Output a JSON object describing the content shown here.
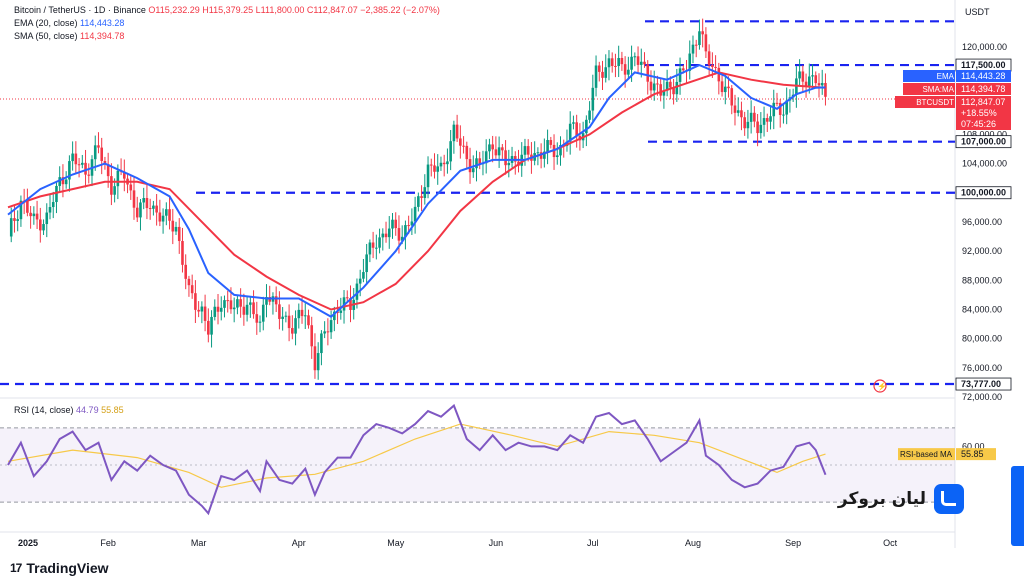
{
  "header": {
    "symbol": "Bitcoin / TetherUS · 1D · Binance",
    "ohlc": "O115,232.29 H115,379.25 L111,800.00 C112,847.07 −2,385.22 (−2.07%)",
    "ema_label": "EMA (20, close)",
    "ema_value": "114,443.28",
    "sma_label": "SMA (50, close)",
    "sma_value": "114,394.78",
    "currency": "USDT"
  },
  "rsi_header": {
    "label": "RSI (14, close)",
    "value": "44.79",
    "ma_value": "55.85"
  },
  "brand": {
    "name": "لیان بروکر"
  },
  "footer": {
    "logo_text": "TradingView",
    "logo_mark": "17"
  },
  "colors": {
    "up": "#089981",
    "down": "#f23645",
    "ema": "#2962ff",
    "sma": "#f23645",
    "rsi": "#7e57c2",
    "rsi_ma": "#f7c948",
    "level": "#1a23f0"
  },
  "chart_data": [
    {
      "type": "line",
      "title": "Bitcoin / TetherUS · 1D · Binance",
      "ylim": [
        72000,
        124500
      ],
      "y_ticks": [
        "72,000.00",
        "76,000.00",
        "80,000.00",
        "84,000.00",
        "88,000.00",
        "92,000.00",
        "96,000.00",
        "100,000.00",
        "104,000.00",
        "108,000.00",
        "120,000.00"
      ],
      "x_ticks": [
        "2025",
        "Feb",
        "Mar",
        "Apr",
        "May",
        "Jun",
        "Jul",
        "Aug",
        "Sep",
        "Oct"
      ],
      "levels": [
        {
          "label": "117,500.00",
          "value": 117500
        },
        {
          "label": "107,000.00",
          "value": 107000
        },
        {
          "label": "100,000.00",
          "value": 100000
        },
        {
          "label": "73,777.00",
          "value": 73777
        }
      ],
      "price_tags": [
        {
          "name": "EMA",
          "label": "114,443.28",
          "value": 114443.28
        },
        {
          "name": "SMA:MA",
          "label": "114,394.78",
          "value": 114394.78
        },
        {
          "name": "BTCUSDT",
          "label": "112,847.07",
          "sub1": "+18.55%",
          "sub2": "07:45:26",
          "value": 112847.07
        }
      ],
      "price_path": [
        [
          0,
          94000
        ],
        [
          4,
          99000
        ],
        [
          8,
          96000
        ],
        [
          12,
          96500
        ],
        [
          16,
          101500
        ],
        [
          20,
          104500
        ],
        [
          24,
          103000
        ],
        [
          28,
          106000
        ],
        [
          32,
          101000
        ],
        [
          36,
          102500
        ],
        [
          40,
          97500
        ],
        [
          44,
          98500
        ],
        [
          48,
          96500
        ],
        [
          52,
          95500
        ],
        [
          56,
          86000
        ],
        [
          60,
          84000
        ],
        [
          62,
          81000
        ],
        [
          66,
          85500
        ],
        [
          70,
          84000
        ],
        [
          74,
          85000
        ],
        [
          78,
          81500
        ],
        [
          80,
          87000
        ],
        [
          84,
          83000
        ],
        [
          88,
          82000
        ],
        [
          92,
          83500
        ],
        [
          95,
          77000
        ],
        [
          98,
          80500
        ],
        [
          102,
          84500
        ],
        [
          106,
          84500
        ],
        [
          110,
          90000
        ],
        [
          114,
          93500
        ],
        [
          118,
          95000
        ],
        [
          122,
          94500
        ],
        [
          126,
          97000
        ],
        [
          130,
          103500
        ],
        [
          134,
          103000
        ],
        [
          138,
          108500
        ],
        [
          142,
          104500
        ],
        [
          146,
          103500
        ],
        [
          150,
          107000
        ],
        [
          154,
          104000
        ],
        [
          158,
          105000
        ],
        [
          162,
          105000
        ],
        [
          166,
          106000
        ],
        [
          170,
          105500
        ],
        [
          174,
          108500
        ],
        [
          178,
          108000
        ],
        [
          182,
          116000
        ],
        [
          186,
          118000
        ],
        [
          190,
          117000
        ],
        [
          194,
          118500
        ],
        [
          198,
          116000
        ],
        [
          202,
          113500
        ],
        [
          206,
          115000
        ],
        [
          210,
          117000
        ],
        [
          214,
          123000
        ],
        [
          216,
          118500
        ],
        [
          220,
          116000
        ],
        [
          224,
          112000
        ],
        [
          228,
          110000
        ],
        [
          232,
          109000
        ],
        [
          236,
          111000
        ],
        [
          240,
          111500
        ],
        [
          244,
          115000
        ],
        [
          248,
          116000
        ],
        [
          250,
          115500
        ],
        [
          253,
          112847
        ]
      ],
      "ema_20": [
        [
          0,
          97000
        ],
        [
          10,
          100500
        ],
        [
          20,
          102500
        ],
        [
          30,
          104000
        ],
        [
          40,
          102000
        ],
        [
          50,
          99500
        ],
        [
          56,
          95000
        ],
        [
          62,
          89000
        ],
        [
          70,
          86000
        ],
        [
          80,
          85500
        ],
        [
          90,
          85500
        ],
        [
          100,
          83000
        ],
        [
          110,
          87000
        ],
        [
          120,
          92000
        ],
        [
          130,
          98500
        ],
        [
          140,
          103000
        ],
        [
          150,
          104500
        ],
        [
          160,
          104500
        ],
        [
          170,
          106000
        ],
        [
          180,
          109000
        ],
        [
          186,
          113000
        ],
        [
          194,
          116500
        ],
        [
          204,
          115500
        ],
        [
          214,
          117500
        ],
        [
          222,
          116000
        ],
        [
          230,
          113000
        ],
        [
          238,
          111500
        ],
        [
          244,
          113500
        ],
        [
          250,
          114400
        ],
        [
          253,
          114443
        ]
      ],
      "sma_50": [
        [
          0,
          98000
        ],
        [
          10,
          99500
        ],
        [
          20,
          100500
        ],
        [
          30,
          101500
        ],
        [
          40,
          101500
        ],
        [
          50,
          100500
        ],
        [
          60,
          96000
        ],
        [
          70,
          91500
        ],
        [
          80,
          88500
        ],
        [
          90,
          86000
        ],
        [
          100,
          84000
        ],
        [
          110,
          85000
        ],
        [
          120,
          87500
        ],
        [
          130,
          92000
        ],
        [
          140,
          97500
        ],
        [
          150,
          101500
        ],
        [
          160,
          104500
        ],
        [
          170,
          106000
        ],
        [
          180,
          108000
        ],
        [
          190,
          111000
        ],
        [
          200,
          113500
        ],
        [
          210,
          115000
        ],
        [
          220,
          116500
        ],
        [
          230,
          115500
        ],
        [
          240,
          114800
        ],
        [
          253,
          114395
        ]
      ]
    },
    {
      "type": "line",
      "title": "RSI (14, close)",
      "ylim": [
        15,
        85
      ],
      "y_ticks": [
        "60.00"
      ],
      "ma_label": "RSI-based MA",
      "ma_tag": "55.85",
      "band": [
        30,
        70
      ],
      "rsi": [
        [
          0,
          50
        ],
        [
          4,
          62
        ],
        [
          8,
          44
        ],
        [
          12,
          52
        ],
        [
          16,
          64
        ],
        [
          20,
          68
        ],
        [
          24,
          58
        ],
        [
          28,
          62
        ],
        [
          32,
          42
        ],
        [
          36,
          52
        ],
        [
          40,
          47
        ],
        [
          44,
          55
        ],
        [
          48,
          50
        ],
        [
          52,
          47
        ],
        [
          56,
          34
        ],
        [
          60,
          28
        ],
        [
          62,
          24
        ],
        [
          66,
          44
        ],
        [
          70,
          42
        ],
        [
          74,
          47
        ],
        [
          78,
          36
        ],
        [
          80,
          52
        ],
        [
          84,
          42
        ],
        [
          88,
          40
        ],
        [
          92,
          48
        ],
        [
          95,
          34
        ],
        [
          98,
          46
        ],
        [
          102,
          54
        ],
        [
          106,
          54
        ],
        [
          110,
          66
        ],
        [
          114,
          72
        ],
        [
          118,
          70
        ],
        [
          122,
          67
        ],
        [
          126,
          72
        ],
        [
          130,
          79
        ],
        [
          134,
          76
        ],
        [
          138,
          82
        ],
        [
          142,
          64
        ],
        [
          146,
          58
        ],
        [
          150,
          66
        ],
        [
          154,
          58
        ],
        [
          158,
          62
        ],
        [
          162,
          60
        ],
        [
          166,
          60
        ],
        [
          170,
          58
        ],
        [
          174,
          66
        ],
        [
          178,
          62
        ],
        [
          182,
          76
        ],
        [
          186,
          78
        ],
        [
          190,
          72
        ],
        [
          194,
          74
        ],
        [
          198,
          64
        ],
        [
          202,
          52
        ],
        [
          206,
          57
        ],
        [
          210,
          62
        ],
        [
          214,
          74
        ],
        [
          216,
          55
        ],
        [
          220,
          50
        ],
        [
          224,
          42
        ],
        [
          228,
          38
        ],
        [
          232,
          40
        ],
        [
          236,
          47
        ],
        [
          240,
          49
        ],
        [
          244,
          60
        ],
        [
          248,
          62
        ],
        [
          250,
          58
        ],
        [
          253,
          44.79
        ]
      ],
      "rsi_ma": [
        [
          0,
          52
        ],
        [
          20,
          58
        ],
        [
          40,
          54
        ],
        [
          56,
          46
        ],
        [
          66,
          38
        ],
        [
          80,
          43
        ],
        [
          95,
          45
        ],
        [
          110,
          52
        ],
        [
          126,
          64
        ],
        [
          140,
          72
        ],
        [
          156,
          66
        ],
        [
          170,
          60
        ],
        [
          186,
          68
        ],
        [
          200,
          66
        ],
        [
          214,
          62
        ],
        [
          226,
          54
        ],
        [
          238,
          46
        ],
        [
          246,
          52
        ],
        [
          253,
          55.85
        ]
      ]
    }
  ]
}
